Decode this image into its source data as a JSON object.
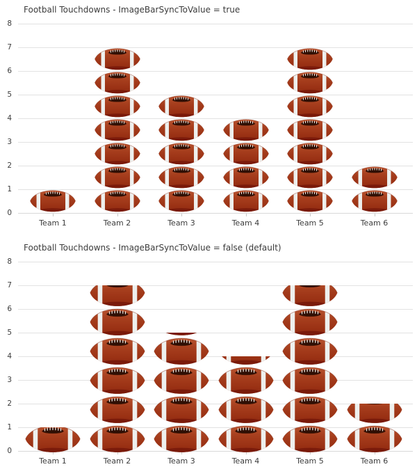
{
  "chart_data": [
    {
      "type": "bar",
      "title": "Football Touchdowns - ImageBarSyncToValue = true",
      "categories": [
        "Team 1",
        "Team 2",
        "Team 3",
        "Team 4",
        "Team 5",
        "Team 6"
      ],
      "values": [
        1,
        7,
        5,
        4,
        7,
        2
      ],
      "xlabel": "",
      "ylabel": "",
      "ylim": [
        0,
        8
      ],
      "yticks": [
        0,
        1,
        2,
        3,
        4,
        5,
        6,
        7,
        8
      ],
      "grid": "horizontal",
      "legend": "none",
      "bar_icon": "football-icon",
      "image_bar_sync_to_value": true
    },
    {
      "type": "bar",
      "title": "Football Touchdowns - ImageBarSyncToValue = false (default)",
      "categories": [
        "Team 1",
        "Team 2",
        "Team 3",
        "Team 4",
        "Team 5",
        "Team 6"
      ],
      "values": [
        1,
        7,
        5,
        4,
        7,
        2
      ],
      "xlabel": "",
      "ylabel": "",
      "ylim": [
        0,
        8
      ],
      "yticks": [
        0,
        1,
        2,
        3,
        4,
        5,
        6,
        7,
        8
      ],
      "grid": "horizontal",
      "legend": "none",
      "bar_icon": "football-icon",
      "image_bar_sync_to_value": false
    }
  ],
  "colors": {
    "background": "#ffffff",
    "grid_line": "#e2e2e2",
    "baseline": "#d8d8d8",
    "title_text": "#3b3b3b",
    "axis_text": "#3d3d3d",
    "football_body": "#a73f1e",
    "football_body_light": "#b85430",
    "football_shadow": "#7a1a0a",
    "football_stripe": "#eef0ee",
    "football_lace_patch": "#2f0f04",
    "football_lace_stitch": "#f3efe9"
  }
}
